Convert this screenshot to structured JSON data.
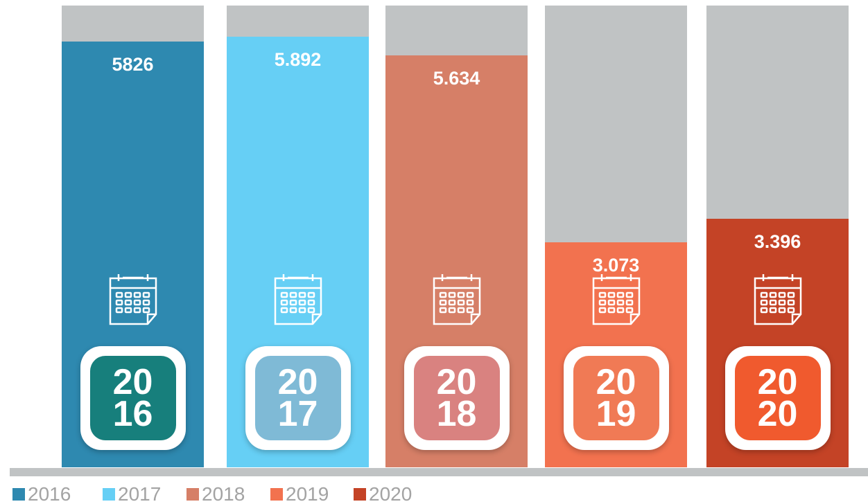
{
  "chart_data": {
    "type": "bar",
    "categories": [
      "2016",
      "2017",
      "2018",
      "2019",
      "2020"
    ],
    "values": [
      5826,
      5892,
      5634,
      3073,
      3396
    ],
    "value_labels": [
      "5826",
      "5.892",
      "5.634",
      "3.073",
      "3.396"
    ],
    "colors": [
      "#2e89b0",
      "#66cff5",
      "#d67f67",
      "#f2724f",
      "#c44326"
    ],
    "badge_colors": [
      "#177f7c",
      "#7fbad6",
      "#d98280",
      "#f07a55",
      "#f05a2e"
    ],
    "legend": "bottom-left"
  }
}
